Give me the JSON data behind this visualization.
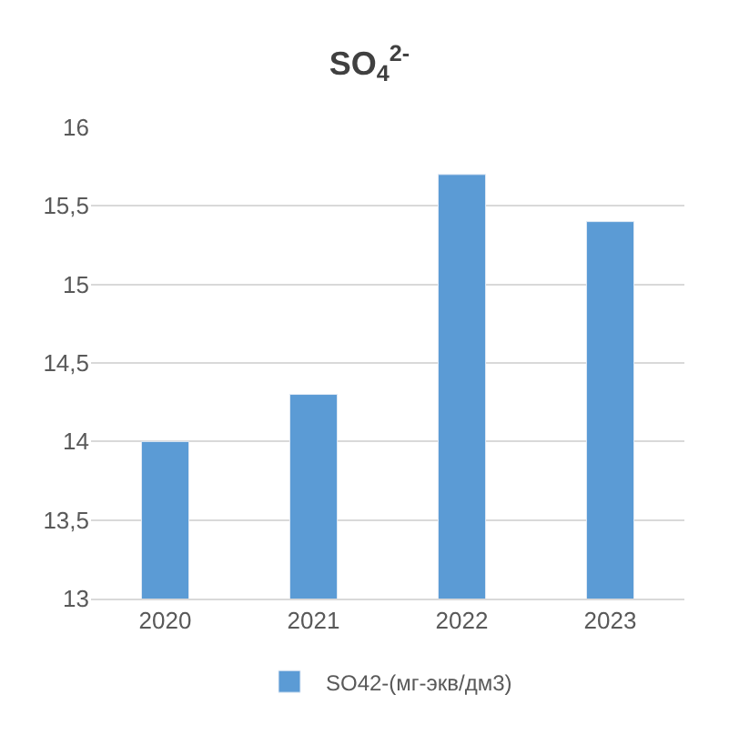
{
  "chart_data": {
    "type": "bar",
    "title": "SO$_{4}$$^{2-}$",
    "categories": [
      "2020",
      "2021",
      "2022",
      "2023"
    ],
    "series": [
      {
        "name": "SO42-(мг-экв/дм3)",
        "color": "#5b9bd5",
        "values": [
          14,
          14.3,
          15.7,
          15.4
        ]
      }
    ],
    "ylim": [
      13,
      16
    ],
    "yticks": [
      13,
      {
        "value": 13.5,
        "label": "13,5"
      },
      14,
      {
        "value": 14.5,
        "label": "14,5"
      },
      15,
      {
        "value": 15.5,
        "label": "15,5"
      },
      16
    ],
    "grid": "y",
    "legend": "bottom"
  }
}
